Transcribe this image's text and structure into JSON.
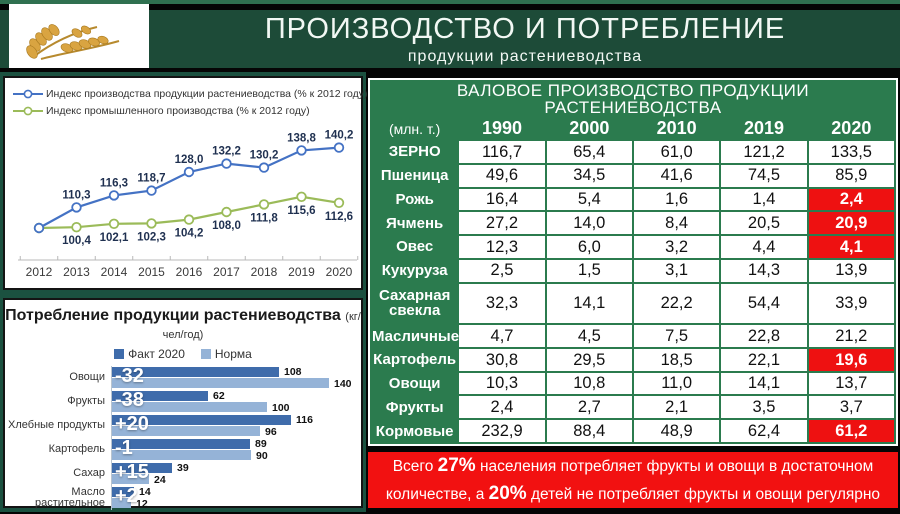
{
  "header": {
    "title": "ПРОИЗВОДСТВО И ПОТРЕБЛЕНИЕ",
    "subtitle": "продукции  растениеводства"
  },
  "colors": {
    "header_green": "#1d4b38",
    "table_green": "#2b7b4e",
    "highlight_red": "#ee1111",
    "banner_red": "#f21111",
    "line_blue": "#4472c4",
    "line_olive": "#9bbb59",
    "bar_fact_blue": "#3f6cab",
    "bar_norm_blue": "#95b3d7"
  },
  "chart_data": [
    {
      "type": "line",
      "x": [
        2012,
        2013,
        2014,
        2015,
        2016,
        2017,
        2018,
        2019,
        2020
      ],
      "series": [
        {
          "name": "Индекс производства продукции растениеводства (% к 2012 году)",
          "color": "#4472c4",
          "values": [
            100,
            110.3,
            116.3,
            118.7,
            128.0,
            132.2,
            130.2,
            138.8,
            140.2
          ]
        },
        {
          "name": "Индекс промышленного производства (% к 2012 году)",
          "color": "#9bbb59",
          "values": [
            100,
            100.4,
            102.1,
            102.3,
            104.2,
            108.0,
            111.8,
            115.6,
            112.6
          ]
        }
      ],
      "notes": "first point (2012=100) unlabeled; decimal comma labels; blue labels above points, olive labels below"
    },
    {
      "type": "bar",
      "title": "Потребление продукции растениеводства",
      "title_unit": "(кг/чел/год)",
      "categories": [
        "Овощи",
        "Фрукты",
        "Хлебные продукты",
        "Картофель",
        "Сахар",
        "Масло растительное"
      ],
      "series": [
        {
          "name": "Факт 2020",
          "color": "#3f6cab",
          "values": [
            108,
            62,
            116,
            89,
            39,
            14
          ]
        },
        {
          "name": "Норма",
          "color": "#95b3d7",
          "values": [
            140,
            100,
            96,
            90,
            24,
            12
          ]
        }
      ],
      "diff_labels": [
        "-32",
        "-38",
        "+20",
        "-1",
        "+15",
        "+2"
      ],
      "xlim": [
        0,
        150
      ],
      "legend_position": "top"
    }
  ],
  "table": {
    "title": "ВАЛОВОЕ ПРОИЗВОДСТВО ПРОДУКЦИИ РАСТЕНИЕВОДСТВА",
    "unit_label": "(млн. т.)",
    "years": [
      "1990",
      "2000",
      "2010",
      "2019",
      "2020"
    ],
    "rows": [
      {
        "label": "ЗЕРНО",
        "values": [
          "116,7",
          "65,4",
          "61,0",
          "121,2",
          "133,5"
        ],
        "highlight_last": false
      },
      {
        "label": "Пшеница",
        "values": [
          "49,6",
          "34,5",
          "41,6",
          "74,5",
          "85,9"
        ],
        "highlight_last": false
      },
      {
        "label": "Рожь",
        "values": [
          "16,4",
          "5,4",
          "1,6",
          "1,4",
          "2,4"
        ],
        "highlight_last": true
      },
      {
        "label": "Ячмень",
        "values": [
          "27,2",
          "14,0",
          "8,4",
          "20,5",
          "20,9"
        ],
        "highlight_last": true
      },
      {
        "label": "Овес",
        "values": [
          "12,3",
          "6,0",
          "3,2",
          "4,4",
          "4,1"
        ],
        "highlight_last": true
      },
      {
        "label": "Кукуруза",
        "values": [
          "2,5",
          "1,5",
          "3,1",
          "14,3",
          "13,9"
        ],
        "highlight_last": false
      },
      {
        "label": "Сахарная свекла",
        "values": [
          "32,3",
          "14,1",
          "22,2",
          "54,4",
          "33,9"
        ],
        "highlight_last": false
      },
      {
        "label": "Масличные",
        "values": [
          "4,7",
          "4,5",
          "7,5",
          "22,8",
          "21,2"
        ],
        "highlight_last": false
      },
      {
        "label": "Картофель",
        "values": [
          "30,8",
          "29,5",
          "18,5",
          "22,1",
          "19,6"
        ],
        "highlight_last": true
      },
      {
        "label": "Овощи",
        "values": [
          "10,3",
          "10,8",
          "11,0",
          "14,1",
          "13,7"
        ],
        "highlight_last": false
      },
      {
        "label": "Фрукты",
        "values": [
          "2,4",
          "2,7",
          "2,1",
          "3,5",
          "3,7"
        ],
        "highlight_last": false
      },
      {
        "label": "Кормовые",
        "values": [
          "232,9",
          "88,4",
          "48,9",
          "62,4",
          "61,2"
        ],
        "highlight_last": true
      }
    ]
  },
  "banner": {
    "segments": [
      {
        "text": "Всего ",
        "bold": false
      },
      {
        "text": "27%",
        "bold": true
      },
      {
        "text": " населения потребляет фрукты и овощи в достаточном количестве, а ",
        "bold": false
      },
      {
        "text": "20%",
        "bold": true
      },
      {
        "text": " детей не потребляет фрукты и овощи регулярно",
        "bold": false
      }
    ]
  }
}
